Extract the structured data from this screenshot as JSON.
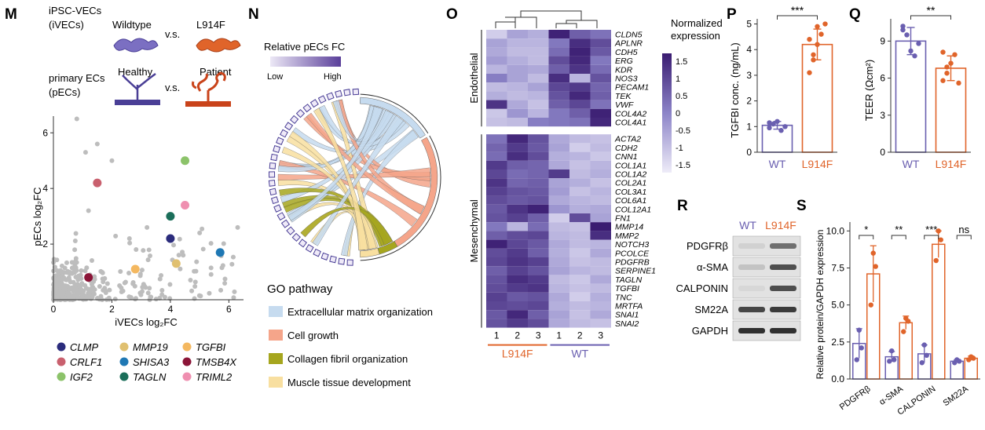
{
  "panel_letters": {
    "M": "M",
    "N": "N",
    "O": "O",
    "P": "P",
    "Q": "Q",
    "R": "R",
    "S": "S"
  },
  "colors": {
    "wt": "#6a5fb0",
    "mut": "#e0642a",
    "grey": "#bdbdbd",
    "ecm": "#c6dbef",
    "growth": "#f5a58a",
    "collagen": "#a6a61e",
    "muscle": "#f8dfa0"
  },
  "schematic": {
    "ipsc_label_1": "iPSC-VECs",
    "ipsc_label_2": "(iVECs)",
    "wildtype": "Wildtype",
    "vs1": "v.s.",
    "l914f": "L914F",
    "primary_label_1": "primary ECs",
    "primary_label_2": "(pECs)",
    "healthy": "Healthy",
    "vs2": "v.s.",
    "patient": "Patient"
  },
  "highlight_genes": [
    {
      "gene": "CLMP",
      "color": "#2b2c7c"
    },
    {
      "gene": "CRLF1",
      "color": "#c9606e"
    },
    {
      "gene": "IGF2",
      "color": "#8cc36a"
    },
    {
      "gene": "MMP19",
      "color": "#e0c070"
    },
    {
      "gene": "SHISA3",
      "color": "#1f78b4"
    },
    {
      "gene": "TAGLN",
      "color": "#1b6e5a"
    },
    {
      "gene": "TGFBI",
      "color": "#f4b860"
    },
    {
      "gene": "TMSB4X",
      "color": "#8b1538"
    },
    {
      "gene": "TRIML2",
      "color": "#ef8fb0"
    }
  ],
  "chart_data": [
    {
      "type": "scatter",
      "panel": "M",
      "xlabel": "iVECs log₂FC",
      "ylabel": "pECs log₂FC",
      "xlim": [
        0,
        6.5
      ],
      "ylim": [
        0,
        6.6
      ],
      "xticks": [
        0,
        2,
        4,
        6
      ],
      "yticks": [
        2,
        4,
        6
      ],
      "highlighted": [
        {
          "gene": "IGF2",
          "x": 4.5,
          "y": 5.0
        },
        {
          "gene": "CRLF1",
          "x": 1.5,
          "y": 4.2
        },
        {
          "gene": "TRIML2",
          "x": 4.5,
          "y": 3.4
        },
        {
          "gene": "TAGLN",
          "x": 4.0,
          "y": 3.0
        },
        {
          "gene": "CLMP",
          "x": 4.0,
          "y": 2.2
        },
        {
          "gene": "SHISA3",
          "x": 5.7,
          "y": 1.7
        },
        {
          "gene": "MMP19",
          "x": 4.2,
          "y": 1.3
        },
        {
          "gene": "TGFBI",
          "x": 2.8,
          "y": 1.1
        },
        {
          "gene": "TMSB4X",
          "x": 1.2,
          "y": 0.8
        }
      ]
    },
    {
      "type": "chord",
      "panel": "N",
      "scale_title": "Relative pECs FC",
      "scale_low": "Low",
      "scale_high": "High",
      "legend_title": "GO pathway",
      "pathways": [
        {
          "name": "Extracellular matrix organization",
          "color_key": "ecm"
        },
        {
          "name": "Cell growth",
          "color_key": "growth"
        },
        {
          "name": "Collagen fibril organization",
          "color_key": "collagen"
        },
        {
          "name": "Muscle tissue development",
          "color_key": "muscle"
        }
      ]
    },
    {
      "type": "heatmap",
      "panel": "O",
      "legend_title_1": "Normalized",
      "legend_title_2": "expression",
      "legend_ticks": [
        "1.5",
        "1",
        "0.5",
        "0",
        "-0.5",
        "-1",
        "-1.5"
      ],
      "columns": [
        "1",
        "2",
        "3",
        "1",
        "2",
        "3"
      ],
      "group_labels": [
        "L914F",
        "WT"
      ],
      "row_groups": [
        {
          "name": "Endothelial",
          "genes": [
            "CLDN5",
            "APLNR",
            "CDH5",
            "ERG",
            "KDR",
            "NOS3",
            "PECAM1",
            "TEK",
            "VWF",
            "COL4A2",
            "COL4A1"
          ],
          "values": [
            [
              -1.2,
              -0.5,
              -0.7,
              1.6,
              0.6,
              0.3
            ],
            [
              -0.5,
              -0.8,
              -0.8,
              0.2,
              1.4,
              0.9
            ],
            [
              -0.6,
              -0.9,
              -0.9,
              0.4,
              1.6,
              0.7
            ],
            [
              -0.4,
              -0.7,
              -0.9,
              0.9,
              1.5,
              0.2
            ],
            [
              -0.8,
              -0.5,
              -0.6,
              0.6,
              1.3,
              0.4
            ],
            [
              0.1,
              -0.5,
              -0.9,
              1.4,
              -0.8,
              0.8
            ],
            [
              -0.9,
              -0.8,
              -0.5,
              1.0,
              1.2,
              0.5
            ],
            [
              -0.7,
              -0.9,
              -0.8,
              0.8,
              1.5,
              0.6
            ],
            [
              1.3,
              -0.6,
              -1.0,
              0.6,
              1.0,
              0.3
            ],
            [
              -1.1,
              -0.3,
              -0.8,
              0.2,
              0.6,
              1.6
            ],
            [
              -1.0,
              -0.9,
              0.1,
              0.2,
              0.3,
              1.5
            ]
          ]
        },
        {
          "name": "Mesenchymal",
          "genes": [
            "ACTA2",
            "CDH2",
            "CNN1",
            "COL1A1",
            "COL1A2",
            "COL2A1",
            "COL3A1",
            "COL6A1",
            "COL12A1",
            "FN1",
            "MMP14",
            "MMP2",
            "NOTCH3",
            "PCOLCE",
            "PDGFRB",
            "SERPINE1",
            "TAGLN",
            "TGFBI",
            "TNC",
            "MRTFA",
            "SNAI1",
            "SNAI2"
          ],
          "values": [
            [
              0.3,
              1.5,
              0.8,
              -0.6,
              -0.9,
              -1.0
            ],
            [
              0.5,
              1.2,
              0.7,
              -0.5,
              -1.2,
              -0.9
            ],
            [
              0.4,
              1.4,
              0.9,
              -0.7,
              -0.8,
              -1.1
            ],
            [
              1.2,
              0.6,
              0.5,
              -0.6,
              -1.0,
              -0.8
            ],
            [
              1.0,
              0.4,
              0.5,
              1.2,
              -0.9,
              -0.7
            ],
            [
              1.3,
              0.5,
              0.6,
              -0.5,
              -0.7,
              -1.0
            ],
            [
              1.1,
              0.8,
              0.7,
              -0.4,
              -1.0,
              -0.8
            ],
            [
              0.9,
              0.7,
              0.8,
              -0.6,
              -0.8,
              -0.9
            ],
            [
              0.7,
              1.3,
              1.6,
              -0.3,
              -0.7,
              -0.6
            ],
            [
              0.8,
              1.1,
              0.6,
              -1.2,
              0.9,
              -0.5
            ],
            [
              0.2,
              -0.8,
              0.4,
              -0.9,
              -1.0,
              1.7
            ],
            [
              0.6,
              0.9,
              1.0,
              -0.8,
              -0.9,
              1.4
            ],
            [
              1.6,
              1.0,
              0.7,
              -0.6,
              -0.9,
              -0.8
            ],
            [
              0.9,
              1.2,
              0.6,
              -0.7,
              -1.1,
              -0.6
            ],
            [
              1.0,
              1.3,
              1.1,
              -0.6,
              -1.0,
              -0.9
            ],
            [
              0.6,
              1.1,
              0.8,
              -0.5,
              -0.8,
              -0.9
            ],
            [
              0.8,
              1.4,
              1.2,
              -0.9,
              -1.1,
              -0.6
            ],
            [
              0.9,
              1.2,
              1.3,
              -0.8,
              -1.0,
              -0.9
            ],
            [
              1.1,
              0.7,
              0.8,
              -0.6,
              -1.2,
              -0.7
            ],
            [
              1.0,
              0.9,
              1.0,
              -0.7,
              -0.9,
              -0.8
            ],
            [
              0.7,
              1.5,
              0.6,
              -0.5,
              -1.0,
              -0.6
            ],
            [
              0.8,
              1.2,
              0.9,
              -0.6,
              -0.9,
              -1.0
            ]
          ]
        }
      ]
    },
    {
      "type": "bar",
      "panel": "P",
      "categories": [
        "WT",
        "L914F"
      ],
      "values": [
        1.05,
        4.2
      ],
      "errors": [
        0.15,
        0.6
      ],
      "points": [
        [
          0.95,
          1.1,
          1.2,
          0.85,
          1.0,
          1.15
        ],
        [
          3.1,
          3.6,
          4.2,
          4.6,
          5.0,
          4.4,
          3.8,
          4.9
        ]
      ],
      "ylabel": "TGFBI conc. (ng/mL)",
      "ylim": [
        0,
        5.2
      ],
      "yticks": [
        0,
        1,
        2,
        3,
        4,
        5
      ],
      "significance": "***"
    },
    {
      "type": "bar",
      "panel": "Q",
      "categories": [
        "WT",
        "L914F"
      ],
      "values": [
        9.0,
        6.8
      ],
      "errors": [
        1.1,
        1.0
      ],
      "points": [
        [
          10.2,
          9.5,
          8.2,
          7.8,
          8.8,
          9.9
        ],
        [
          5.8,
          6.4,
          7.2,
          7.9,
          5.6,
          8.1,
          6.9
        ]
      ],
      "ylabel": "TEER (Ωcm²)",
      "ylim": [
        0,
        10.8
      ],
      "yticks": [
        0,
        3,
        6,
        9
      ],
      "significance": "**"
    },
    {
      "type": "western_blot",
      "panel": "R",
      "lanes": [
        "WT",
        "L914F"
      ],
      "bands": [
        "PDGFRβ",
        "α-SMA",
        "CALPONIN",
        "SM22A",
        "GAPDH"
      ]
    },
    {
      "type": "bar",
      "panel": "S",
      "categories": [
        "PDGFRβ",
        "α-SMA",
        "CALPONIN",
        "SM22A"
      ],
      "series": [
        {
          "name": "WT",
          "values": [
            2.4,
            1.5,
            1.7,
            1.2
          ],
          "errors": [
            1.0,
            0.35,
            0.6,
            0.1
          ],
          "points": [
            [
              1.3,
              3.3,
              2.1
            ],
            [
              1.2,
              1.9,
              1.3
            ],
            [
              1.1,
              2.3,
              1.6
            ],
            [
              1.1,
              1.3,
              1.2
            ]
          ]
        },
        {
          "name": "L914F",
          "values": [
            7.1,
            3.8,
            9.1,
            1.4
          ],
          "errors": [
            1.9,
            0.45,
            0.9,
            0.15
          ],
          "points": [
            [
              5.0,
              8.5,
              7.6
            ],
            [
              3.2,
              4.1,
              3.9
            ],
            [
              8.0,
              10.0,
              9.4
            ],
            [
              1.3,
              1.5,
              1.4
            ]
          ]
        }
      ],
      "ylabel": "Relative protein/GAPDH expression",
      "ylim": [
        0,
        10.6
      ],
      "yticks": [
        0.0,
        2.5,
        5.0,
        7.5,
        10.0
      ],
      "significance": [
        "*",
        "**",
        "***",
        "ns"
      ]
    }
  ]
}
